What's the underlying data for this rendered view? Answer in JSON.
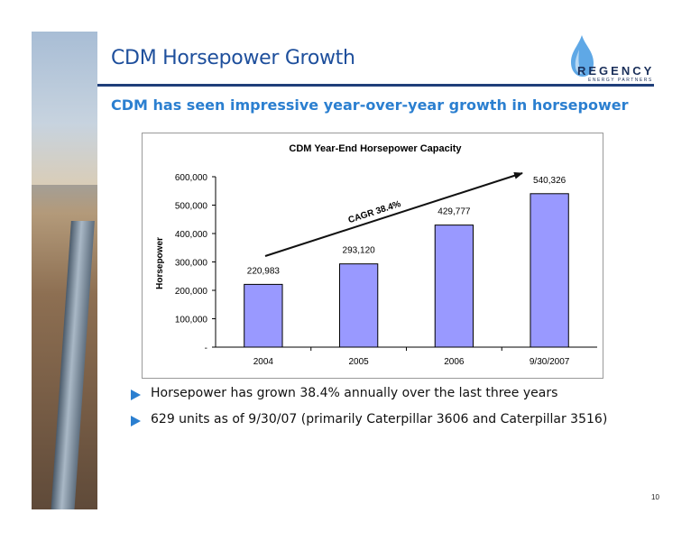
{
  "slide": {
    "title": "CDM Horsepower Growth",
    "subtitle": "CDM has seen impressive year-over-year growth in horsepower",
    "page_number": "10"
  },
  "logo": {
    "word": "REGENCY",
    "tagline": "ENERGY PARTNERS"
  },
  "bullets": [
    "Horsepower has grown 38.4% annually over the last three years",
    "629 units as of 9/30/07 (primarily Caterpillar 3606 and Caterpillar 3516)"
  ],
  "chart_data": {
    "type": "bar",
    "title": "CDM Year-End Horsepower Capacity",
    "ylabel": "Horsepower",
    "xlabel": "",
    "categories": [
      "2004",
      "2005",
      "2006",
      "9/30/2007"
    ],
    "values": [
      220983,
      293120,
      429777,
      540326
    ],
    "data_labels": [
      "220,983",
      "293,120",
      "429,777",
      "540,326"
    ],
    "ylim": [
      0,
      600000
    ],
    "yticks": [
      0,
      100000,
      200000,
      300000,
      400000,
      500000,
      600000
    ],
    "ytick_labels": [
      "-",
      "100,000",
      "200,000",
      "300,000",
      "400,000",
      "500,000",
      "600,000"
    ],
    "annotation": "CAGR 38.4%",
    "bar_color": "#9999ff",
    "grid": false,
    "legend": "none"
  },
  "colors": {
    "title": "#1e4f9c",
    "accent": "#2b7fd0",
    "rule": "#1f3f7a"
  }
}
